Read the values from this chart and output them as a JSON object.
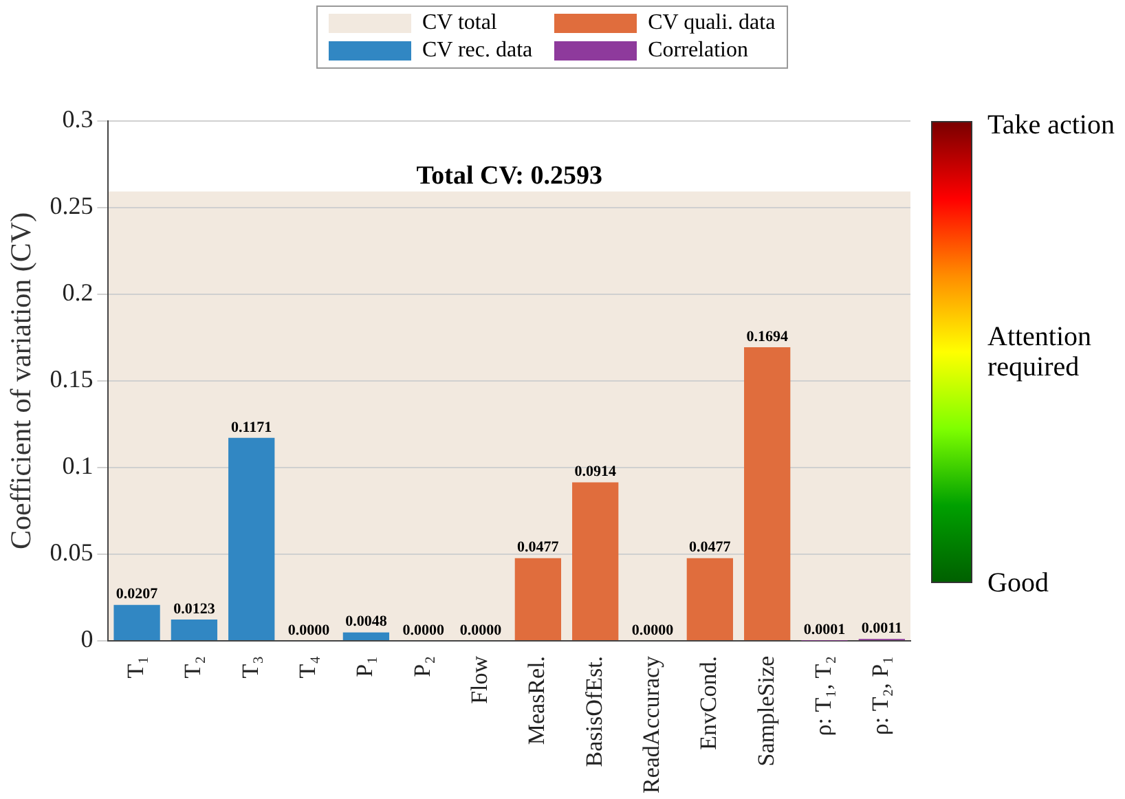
{
  "chart_data": {
    "type": "bar",
    "ylabel": "Coefficient of variation (CV)",
    "categories": [
      "T₁",
      "T₂",
      "T₃",
      "T₄",
      "P₁",
      "P₂",
      "Flow",
      "MeasRel.",
      "BasisOfEst.",
      "ReadAccuracy",
      "EnvCond.",
      "SampleSize",
      "ρ: T₁, T₂",
      "ρ: T₂, P₁"
    ],
    "series": [
      {
        "name": "CV rec. data",
        "color": "#3187c3",
        "values": [
          0.0207,
          0.0123,
          0.1171,
          0,
          0.0048,
          0,
          0,
          null,
          null,
          null,
          null,
          null,
          null,
          null
        ],
        "value_labels": [
          "0.0207",
          "0.0123",
          "0.1171",
          "0.0000",
          "0.0048",
          "0.0000",
          "0.0000",
          null,
          null,
          null,
          null,
          null,
          null,
          null
        ]
      },
      {
        "name": "CV quali. data",
        "color": "#e06d3d",
        "values": [
          null,
          null,
          null,
          null,
          null,
          null,
          null,
          0.0477,
          0.0914,
          0,
          0.0477,
          0.1694,
          null,
          null
        ],
        "value_labels": [
          null,
          null,
          null,
          null,
          null,
          null,
          null,
          "0.0477",
          "0.0914",
          "0.0000",
          "0.0477",
          "0.1694",
          null,
          null
        ]
      },
      {
        "name": "Correlation",
        "color": "#8e3a9c",
        "values": [
          null,
          null,
          null,
          null,
          null,
          null,
          null,
          null,
          null,
          null,
          null,
          null,
          0.0001,
          0.0011
        ],
        "value_labels": [
          null,
          null,
          null,
          null,
          null,
          null,
          null,
          null,
          null,
          null,
          null,
          null,
          "0.0001",
          "0.0011"
        ]
      }
    ],
    "bands": [
      {
        "axis": "y",
        "from": 0,
        "to": 0.2593,
        "label": "CV total",
        "color": "#f2e9df"
      }
    ],
    "annotations": [
      "Total CV: 0.2593",
      "Take action",
      "Attention required",
      "Good"
    ],
    "ylim": [
      0,
      0.3
    ],
    "yticks": [
      0,
      0.05,
      0.1,
      0.15,
      0.2,
      0.25,
      0.3
    ],
    "grid": "y",
    "legend": "top"
  }
}
